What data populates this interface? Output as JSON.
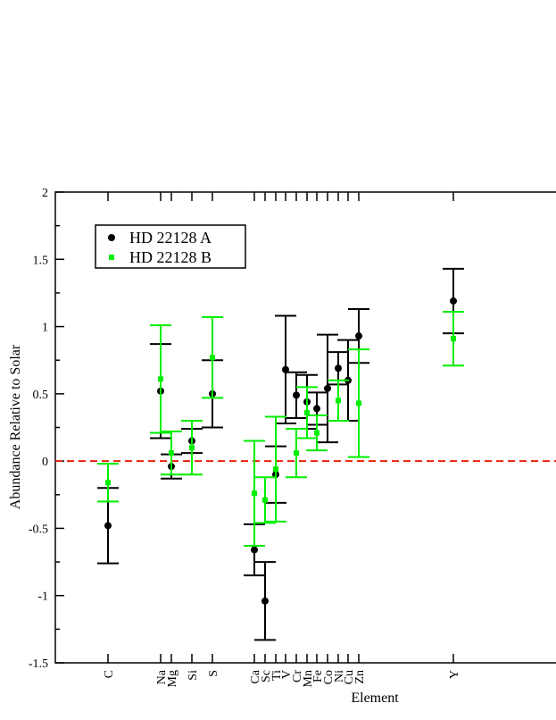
{
  "chart_data": {
    "type": "scatter",
    "xlabel": "Element",
    "ylabel": "Abundance Relative to Solar",
    "categories": [
      "C",
      "Na",
      "Mg",
      "Si",
      "S",
      "Ca",
      "Sc",
      "Ti",
      "V",
      "Cr",
      "Mn",
      "Fe",
      "Co",
      "Ni",
      "Cu",
      "Zn",
      "Y"
    ],
    "series": [
      {
        "name": "HD 22128 A",
        "color": "#000000",
        "marker": "circle",
        "values": [
          -0.48,
          0.52,
          -0.04,
          0.15,
          0.5,
          -0.66,
          -1.04,
          -0.1,
          0.68,
          0.49,
          0.44,
          0.39,
          0.54,
          0.69,
          0.6,
          0.93,
          1.19
        ],
        "errors": [
          0.28,
          0.35,
          0.09,
          0.09,
          0.25,
          0.19,
          0.29,
          0.21,
          0.4,
          0.17,
          0.2,
          0.12,
          0.4,
          0.12,
          0.3,
          0.2,
          0.24
        ]
      },
      {
        "name": "HD 22128 B",
        "color": "#00ee00",
        "marker": "square",
        "values": [
          -0.16,
          0.61,
          0.06,
          0.1,
          0.77,
          -0.24,
          -0.29,
          -0.06,
          null,
          0.06,
          0.36,
          0.21,
          null,
          0.45,
          null,
          0.43,
          0.91
        ],
        "errors": [
          0.14,
          0.4,
          0.16,
          0.2,
          0.3,
          0.39,
          0.17,
          0.39,
          null,
          0.18,
          0.19,
          0.13,
          null,
          0.15,
          null,
          0.4,
          0.2
        ]
      }
    ],
    "ylim": [
      -1.5,
      2
    ],
    "yticks": [
      2,
      1.5,
      1,
      0.5,
      0,
      -0.5,
      -1,
      -1.5
    ],
    "reference_line": {
      "value": 0,
      "color": "#e8200c",
      "style": "dashed"
    },
    "legend": "upper left"
  }
}
